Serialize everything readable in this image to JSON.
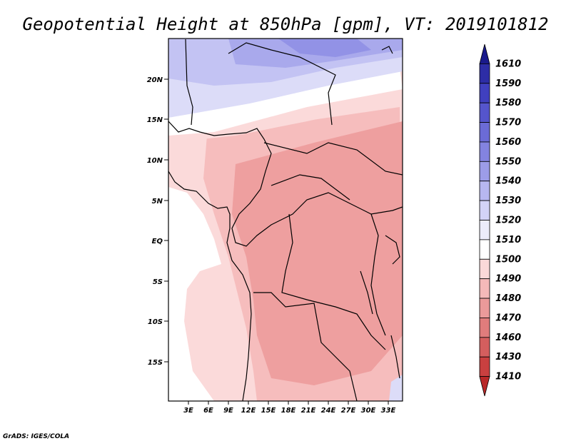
{
  "title": "Geopotential Height at 850hPa [gpm], VT: 2019101812",
  "footer": "GrADS: IGES/COLA",
  "lat_labels": [
    "20N",
    "15N",
    "10N",
    "5N",
    "EQ",
    "5S",
    "10S",
    "15S"
  ],
  "lon_labels": [
    "3E",
    "6E",
    "9E",
    "12E",
    "15E",
    "18E",
    "21E",
    "24E",
    "27E",
    "30E",
    "33E"
  ],
  "colorbar": {
    "levels": [
      1610,
      1590,
      1580,
      1570,
      1560,
      1550,
      1540,
      1530,
      1520,
      1510,
      1500,
      1490,
      1480,
      1470,
      1460,
      1430,
      1410
    ],
    "labels": [
      "1610",
      "1590",
      "1580",
      "1570",
      "1560",
      "1550",
      "1540",
      "1530",
      "1520",
      "1510",
      "1500",
      "1490",
      "1480",
      "1470",
      "1460",
      "1430",
      "1410"
    ],
    "colors": [
      "#1a1a8c",
      "#2d2da6",
      "#4040bf",
      "#5555cc",
      "#6b6bd6",
      "#8383e0",
      "#9c9ce8",
      "#b7b7f0",
      "#d3d3f7",
      "#ececfb",
      "#ffffff",
      "#fbd9d9",
      "#f5b9b9",
      "#eb9a9a",
      "#e07c7c",
      "#d45e5e",
      "#c94040",
      "#b82828"
    ]
  }
}
